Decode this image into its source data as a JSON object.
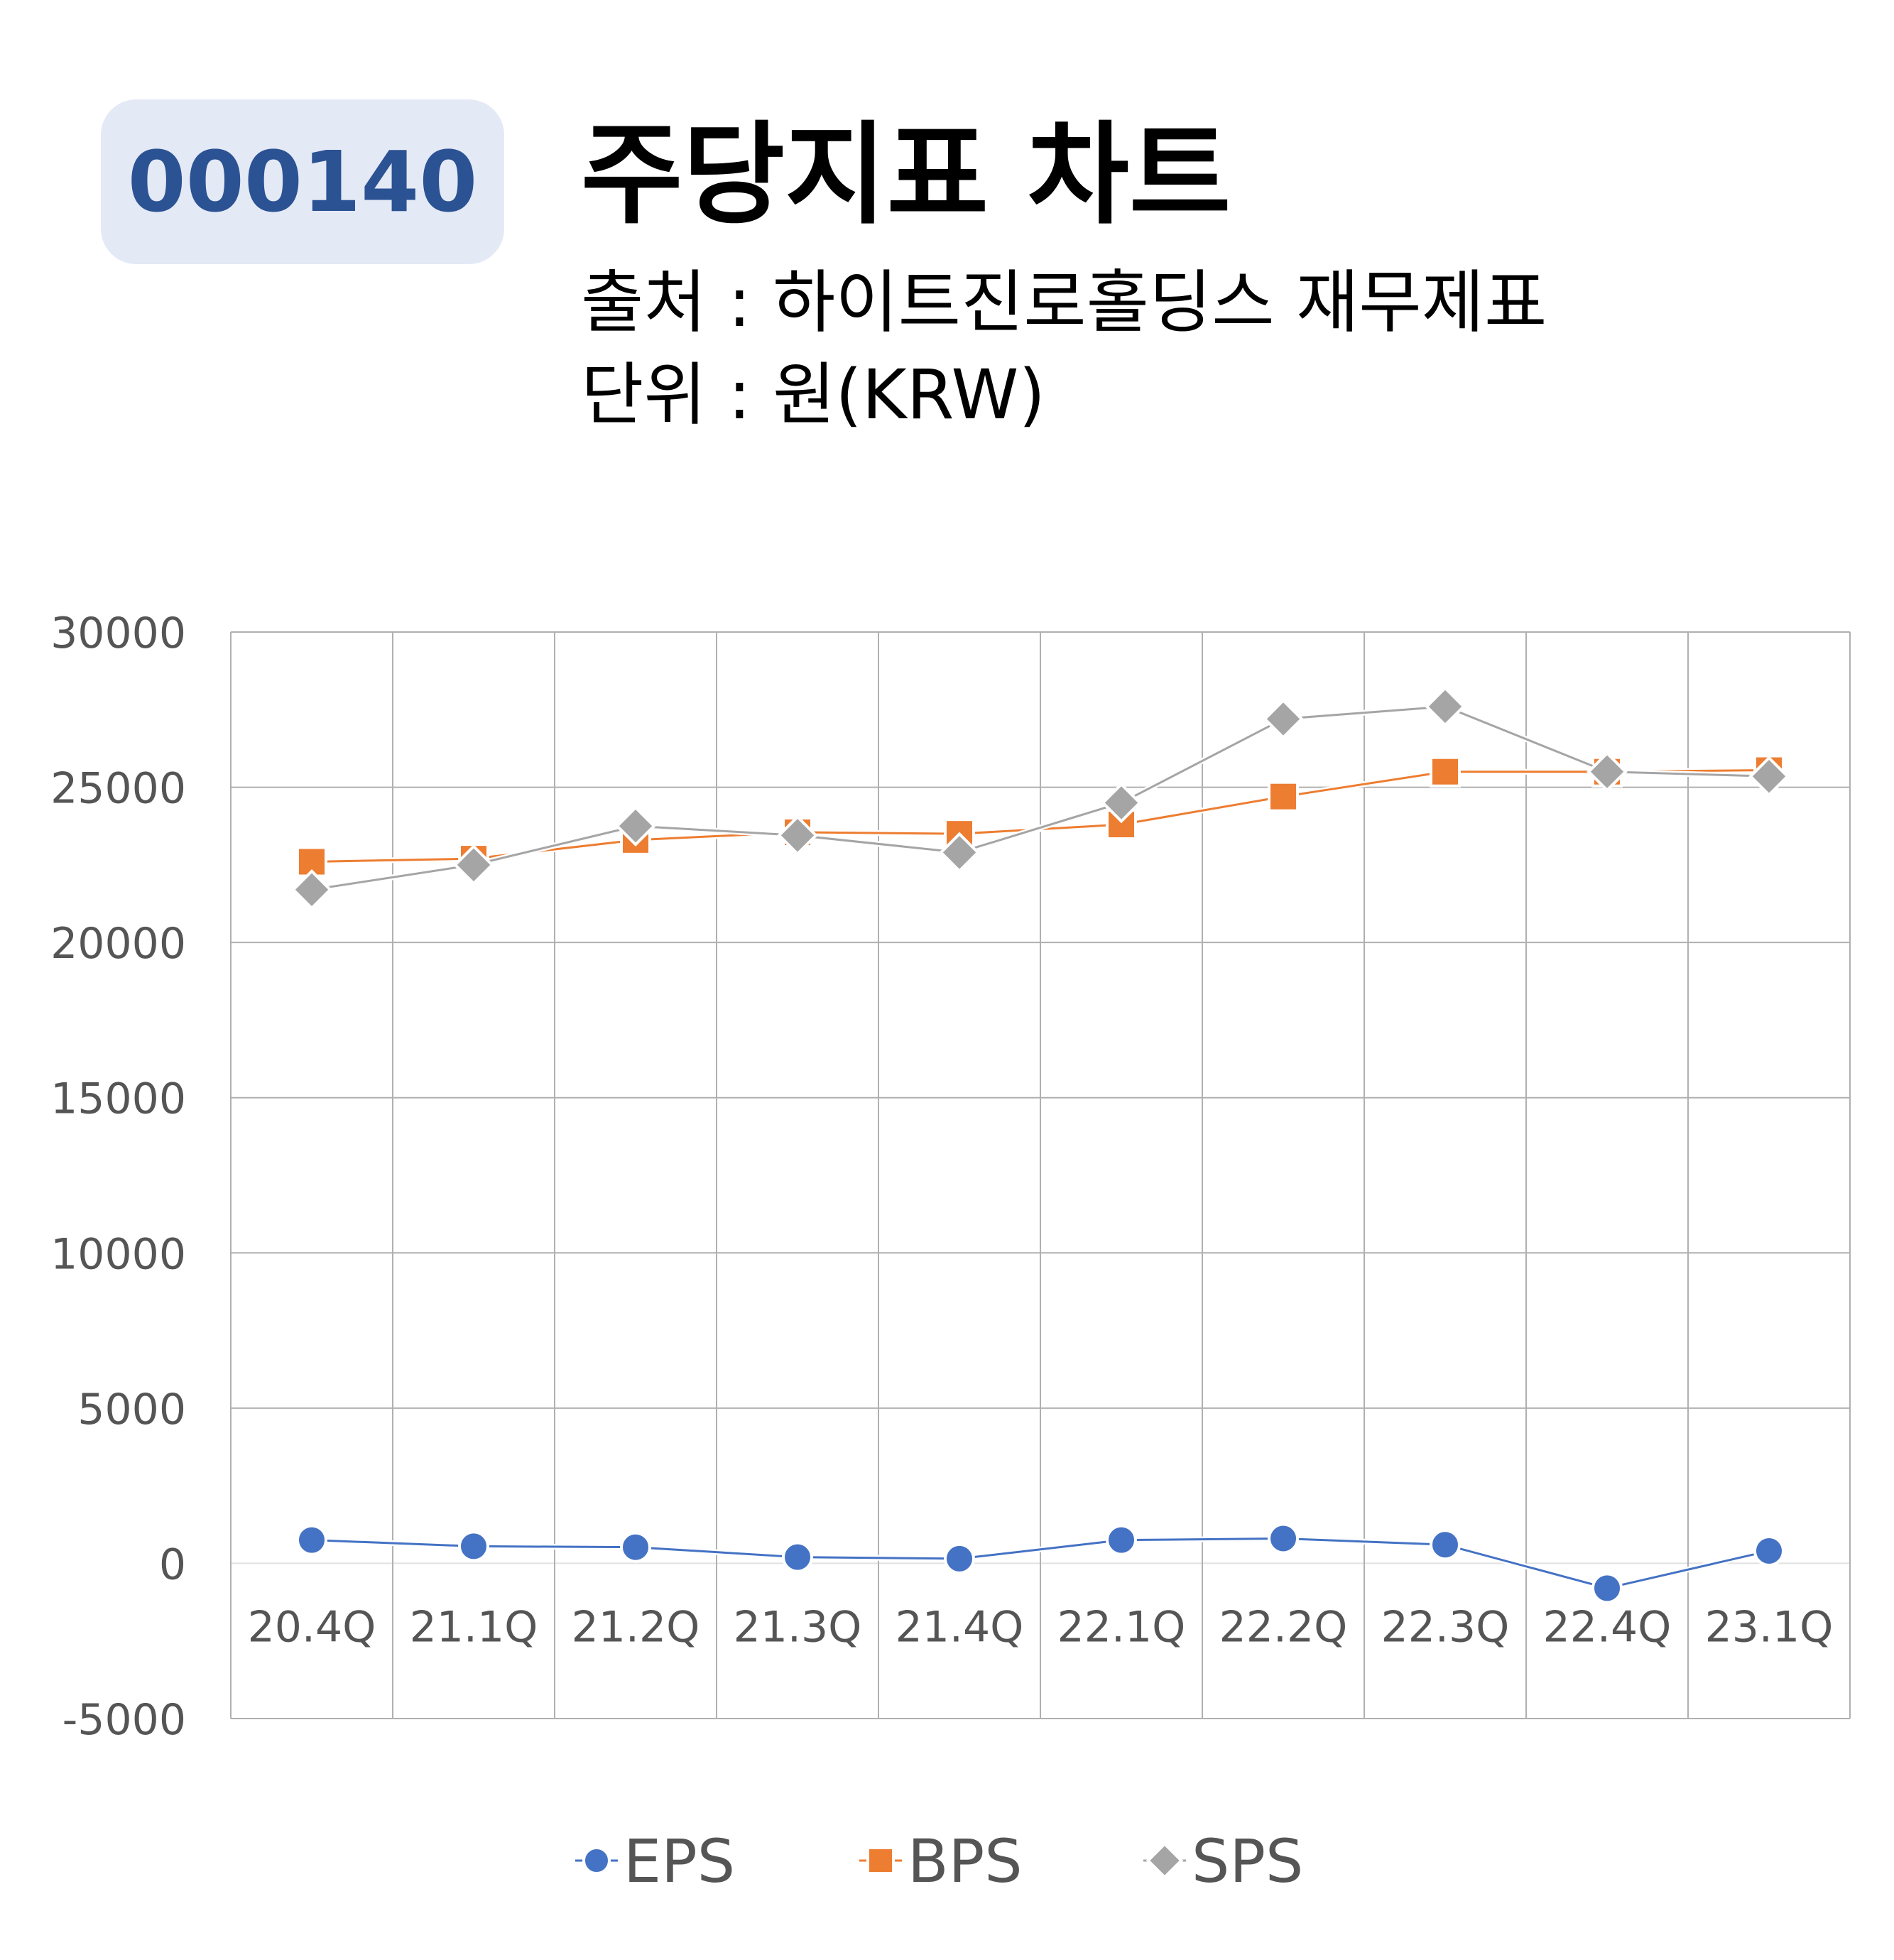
{
  "header": {
    "code": "000140",
    "title": "주당지표 차트",
    "source_line": "출처 : 하이트진로홀딩스 재무제표",
    "unit_line": "단위 : 원(KRW)"
  },
  "colors": {
    "badge_bg": "#e4e9f6",
    "badge_text": "#2b5293",
    "eps": "#4472c4",
    "bps": "#ed7d31",
    "sps": "#a5a5a5",
    "grid": "#b0b0b0"
  },
  "chart_data": {
    "type": "line",
    "categories": [
      "20.4Q",
      "21.1Q",
      "21.2Q",
      "21.3Q",
      "21.4Q",
      "22.1Q",
      "22.2Q",
      "22.3Q",
      "22.4Q",
      "23.1Q"
    ],
    "series": [
      {
        "name": "EPS",
        "marker": "circle",
        "values": [
          750,
          550,
          520,
          200,
          150,
          750,
          800,
          600,
          -800,
          400
        ]
      },
      {
        "name": "BPS",
        "marker": "square",
        "values": [
          22600,
          22700,
          23300,
          23550,
          23500,
          23800,
          24700,
          25500,
          25500,
          25550
        ]
      },
      {
        "name": "SPS",
        "marker": "diamond",
        "values": [
          21700,
          22500,
          23750,
          23450,
          22900,
          24500,
          27200,
          27600,
          25500,
          25350
        ]
      }
    ],
    "ylim": [
      -5000,
      30000
    ],
    "yticks": [
      -5000,
      0,
      5000,
      10000,
      15000,
      20000,
      25000,
      30000
    ],
    "grid": true,
    "legend_position": "bottom"
  }
}
